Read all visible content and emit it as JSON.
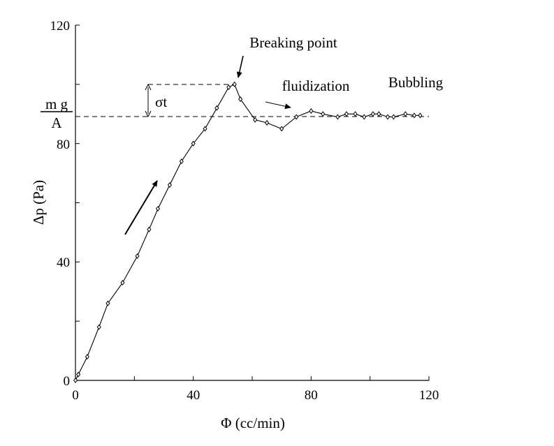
{
  "chart_data": {
    "type": "line",
    "xlabel": "Φ (cc/min)",
    "ylabel": "Δp (Pa)",
    "xlim": [
      0,
      120
    ],
    "ylim": [
      0,
      120
    ],
    "x_ticks": [
      "0",
      "40",
      "80",
      "120"
    ],
    "y_ticks": [
      "0",
      "40",
      "80",
      "120"
    ],
    "grid": false,
    "series": [
      {
        "x": [
          0,
          1,
          4,
          8,
          11,
          16,
          21,
          25,
          28,
          32,
          36,
          40,
          44,
          48,
          52,
          54,
          56,
          61,
          65,
          70,
          75,
          80,
          84,
          89,
          92,
          95,
          98,
          101,
          103,
          106,
          108,
          112,
          115,
          117
        ],
        "y": [
          0,
          2,
          8,
          18,
          26,
          33,
          42,
          51,
          58,
          66,
          74,
          80,
          85,
          92,
          99,
          100,
          95,
          88,
          87,
          85,
          89,
          91,
          90,
          89,
          90,
          90,
          89,
          90,
          90,
          89,
          89,
          90,
          89.5,
          89.5
        ]
      }
    ],
    "reference_lines": [
      {
        "orientation": "horizontal",
        "y": 89.5,
        "label_numerator": "m g",
        "label_denominator": "A",
        "style": "dashed"
      },
      {
        "orientation": "horizontal",
        "y": 100,
        "style": "dashed"
      }
    ],
    "annotations": [
      {
        "text": "Breaking point",
        "arrow": true
      },
      {
        "text": "fluidization",
        "arrow": true
      },
      {
        "text": "Bubbling"
      },
      {
        "text": "σt"
      }
    ],
    "colors": {
      "line": "#000000",
      "markers": "#000000",
      "background": "#ffffff"
    }
  }
}
